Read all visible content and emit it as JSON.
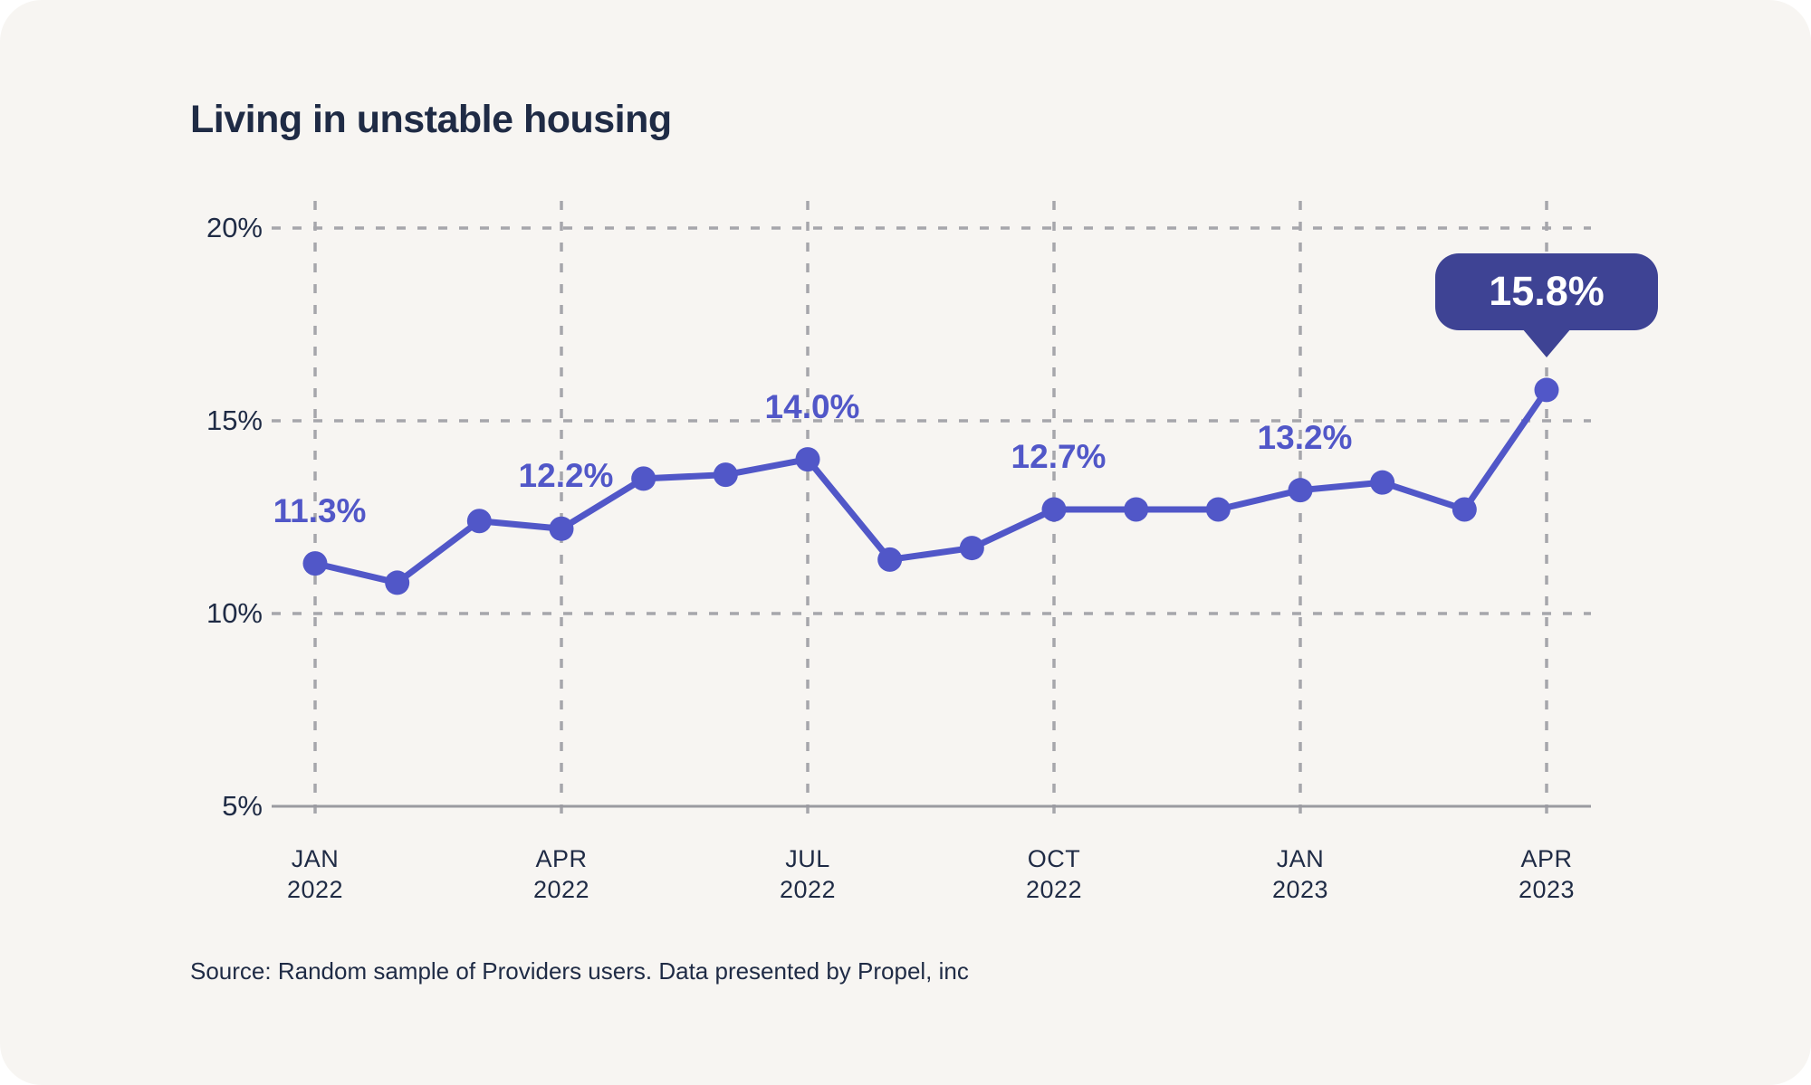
{
  "title": "Living in unstable housing",
  "source": "Source: Random sample of Providers users. Data presented by Propel, inc",
  "colors": {
    "background": "#f7f5f2",
    "text_dark": "#1f2b45",
    "line": "#5157c8",
    "point": "#5157c8",
    "data_label": "#5157c8",
    "callout_bg": "#3e4394",
    "callout_text": "#ffffff",
    "gridline": "#a6a6ab",
    "axis_line": "#9a9aa0"
  },
  "y_axis": {
    "ticks": [
      {
        "label": "20%",
        "value": 20
      },
      {
        "label": "15%",
        "value": 15
      },
      {
        "label": "10%",
        "value": 10
      },
      {
        "label": "5%",
        "value": 5
      }
    ]
  },
  "x_axis": {
    "ticks": [
      {
        "index": 0,
        "month": "JAN",
        "year": "2022"
      },
      {
        "index": 3,
        "month": "APR",
        "year": "2022"
      },
      {
        "index": 6,
        "month": "JUL",
        "year": "2022"
      },
      {
        "index": 9,
        "month": "OCT",
        "year": "2022"
      },
      {
        "index": 12,
        "month": "JAN",
        "year": "2023"
      },
      {
        "index": 15,
        "month": "APR",
        "year": "2023"
      }
    ]
  },
  "data_labels": [
    {
      "index": 0,
      "text": "11.3%"
    },
    {
      "index": 3,
      "text": "12.2%"
    },
    {
      "index": 6,
      "text": "14.0%"
    },
    {
      "index": 9,
      "text": "12.7%"
    },
    {
      "index": 12,
      "text": "13.2%"
    }
  ],
  "callout": {
    "index": 15,
    "text": "15.8%"
  },
  "chart_data": {
    "type": "line",
    "title": "Living in unstable housing",
    "x": [
      "Jan 2022",
      "Feb 2022",
      "Mar 2022",
      "Apr 2022",
      "May 2022",
      "Jun 2022",
      "Jul 2022",
      "Aug 2022",
      "Sep 2022",
      "Oct 2022",
      "Nov 2022",
      "Dec 2022",
      "Jan 2023",
      "Feb 2023",
      "Mar 2023",
      "Apr 2023"
    ],
    "values": [
      11.3,
      10.8,
      12.4,
      12.2,
      13.5,
      13.6,
      14.0,
      11.4,
      11.7,
      12.7,
      12.7,
      12.7,
      13.2,
      13.4,
      12.7,
      15.8
    ],
    "xlabel": "",
    "ylabel": "",
    "ylim": [
      5,
      20
    ],
    "grid": "dashed",
    "legend": "none"
  }
}
